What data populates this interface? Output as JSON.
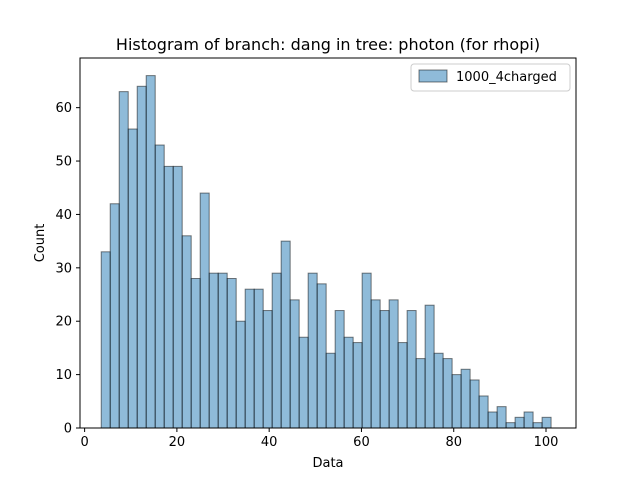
{
  "chart_data": {
    "type": "bar",
    "title": "Histogram of branch: dang in tree: photon (for rhopi)",
    "xlabel": "Data",
    "ylabel": "Count",
    "xlim": [
      -1.0,
      106.5
    ],
    "ylim": [
      0,
      69.3
    ],
    "xticks": [
      0,
      20,
      40,
      60,
      80,
      100
    ],
    "yticks": [
      0,
      10,
      20,
      30,
      40,
      50,
      60
    ],
    "bin_start": 3.6,
    "bin_width": 1.95,
    "series": [
      {
        "name": "1000_4charged",
        "color": "#1f77b4",
        "values": [
          33,
          42,
          63,
          56,
          64,
          66,
          53,
          49,
          49,
          36,
          28,
          44,
          29,
          29,
          28,
          20,
          26,
          26,
          22,
          29,
          35,
          24,
          17,
          29,
          27,
          14,
          22,
          17,
          16,
          29,
          24,
          22,
          24,
          16,
          22,
          13,
          23,
          14,
          13,
          10,
          11,
          9,
          6,
          3,
          4,
          1,
          2,
          3,
          1,
          2
        ]
      }
    ],
    "legend": "top-right",
    "grid": false
  }
}
